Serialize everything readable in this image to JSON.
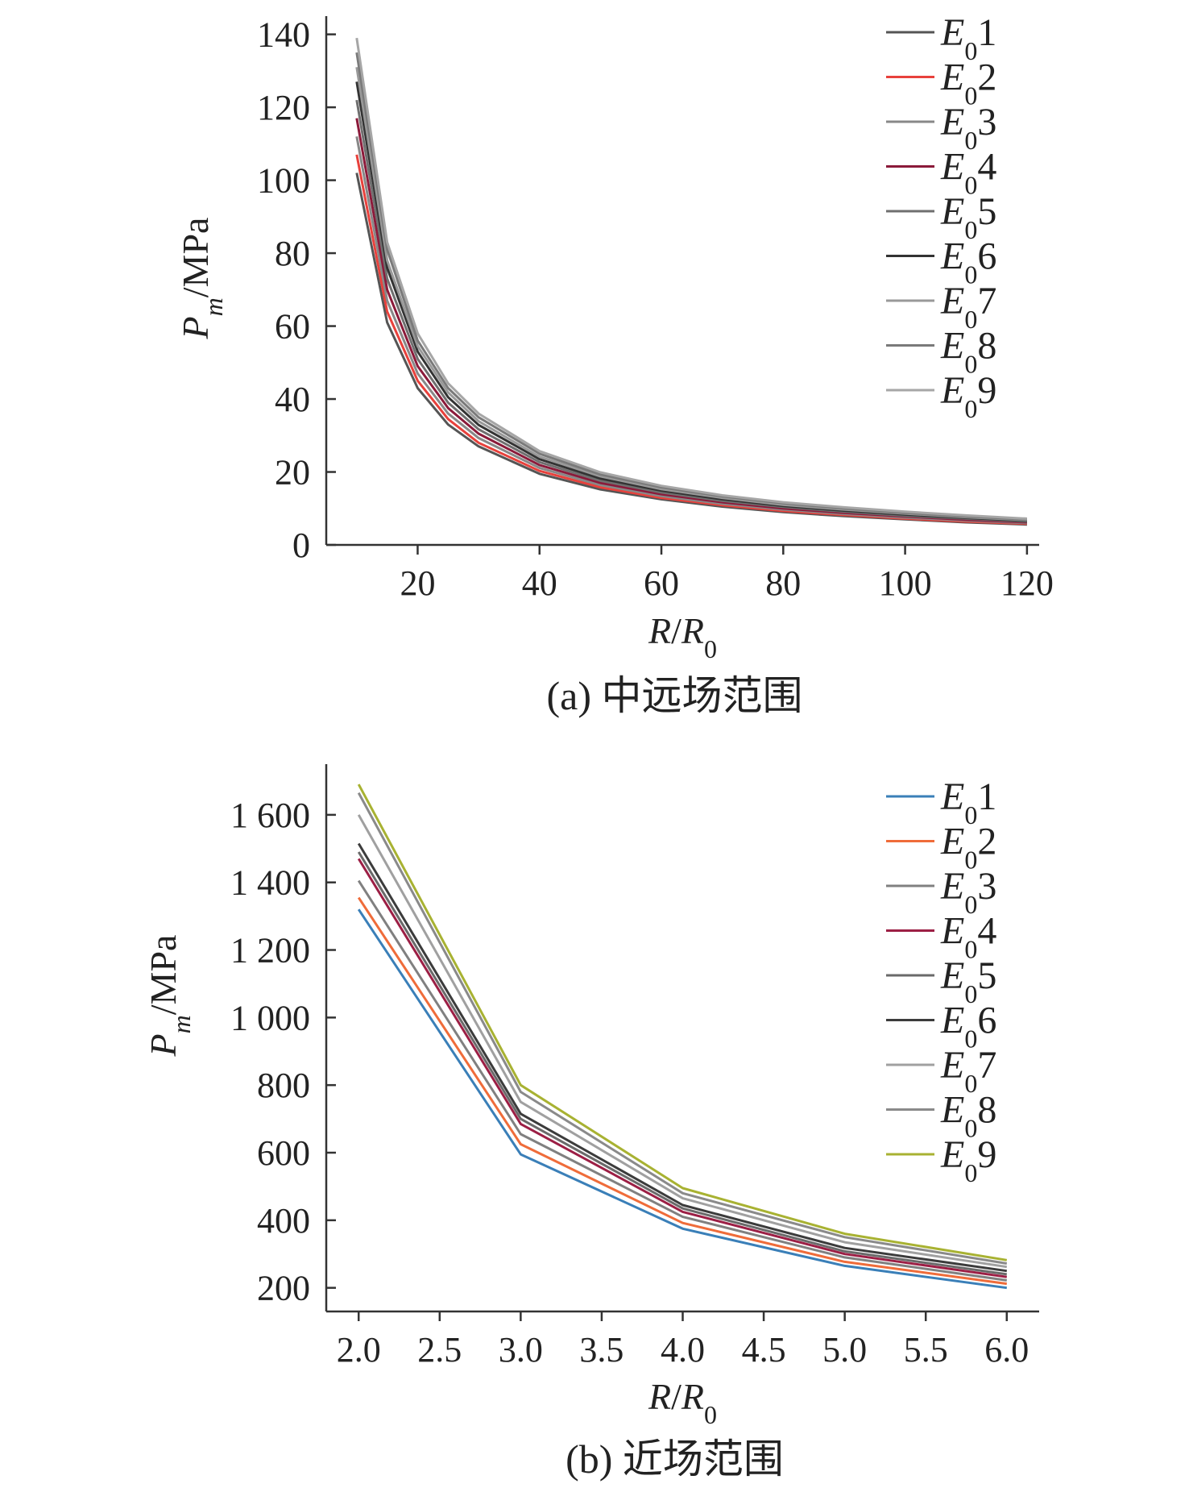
{
  "chart_data": [
    {
      "type": "line",
      "caption": "(a) 中远场范围",
      "ylabel": {
        "main": "P",
        "sub": "m",
        "unit": "/MPa"
      },
      "xlabel": {
        "main": "R",
        "sep": "/",
        "main2": "R",
        "sub": "0"
      },
      "xlim": [
        5,
        122
      ],
      "ylim": [
        0,
        145
      ],
      "xticks": [
        20,
        40,
        60,
        80,
        100,
        120
      ],
      "yticks": [
        0,
        20,
        40,
        60,
        80,
        100,
        120,
        140
      ],
      "xtick_labels": [
        "20",
        "40",
        "60",
        "80",
        "100",
        "120"
      ],
      "ytick_labels": [
        "0",
        "20",
        "40",
        "60",
        "80",
        "100",
        "120",
        "140"
      ],
      "legend_position": "top-right",
      "x": [
        10,
        15,
        20,
        25,
        30,
        40,
        50,
        60,
        70,
        80,
        90,
        100,
        110,
        120
      ],
      "series": [
        {
          "name": "E01",
          "label_main": "E",
          "label_sub": "0",
          "label_num": "1",
          "color": "#555555",
          "values": [
            102,
            61,
            43,
            33,
            27,
            19.5,
            15.2,
            12.5,
            10.5,
            9.0,
            7.9,
            7.0,
            6.2,
            5.6
          ]
        },
        {
          "name": "E02",
          "label_main": "E",
          "label_sub": "0",
          "label_num": "2",
          "color": "#e8413c",
          "values": [
            107,
            64,
            45,
            34.5,
            28,
            20.3,
            15.8,
            12.9,
            10.9,
            9.3,
            8.2,
            7.2,
            6.4,
            5.8
          ]
        },
        {
          "name": "E03",
          "label_main": "E",
          "label_sub": "0",
          "label_num": "3",
          "color": "#888888",
          "values": [
            112,
            67,
            47,
            36,
            29.3,
            21.1,
            16.4,
            13.4,
            11.3,
            9.7,
            8.5,
            7.5,
            6.7,
            6.0
          ]
        },
        {
          "name": "E04",
          "label_main": "E",
          "label_sub": "0",
          "label_num": "4",
          "color": "#8b1a3a",
          "values": [
            117,
            70,
            49,
            37.5,
            30.5,
            21.9,
            17.0,
            13.9,
            11.7,
            10.0,
            8.8,
            7.8,
            6.9,
            6.2
          ]
        },
        {
          "name": "E05",
          "label_main": "E",
          "label_sub": "0",
          "label_num": "5",
          "color": "#6f6f6f",
          "values": [
            122,
            73,
            51,
            39,
            31.7,
            22.7,
            17.6,
            14.4,
            12.1,
            10.4,
            9.1,
            8.0,
            7.2,
            6.4
          ]
        },
        {
          "name": "E06",
          "label_main": "E",
          "label_sub": "0",
          "label_num": "6",
          "color": "#333333",
          "values": [
            127,
            76,
            53,
            40.5,
            32.9,
            23.5,
            18.2,
            14.9,
            12.5,
            10.7,
            9.4,
            8.3,
            7.4,
            6.6
          ]
        },
        {
          "name": "E07",
          "label_main": "E",
          "label_sub": "0",
          "label_num": "7",
          "color": "#999999",
          "values": [
            131,
            78,
            54.5,
            41.8,
            33.9,
            24.2,
            18.8,
            15.3,
            12.9,
            11.0,
            9.7,
            8.6,
            7.6,
            6.8
          ]
        },
        {
          "name": "E08",
          "label_main": "E",
          "label_sub": "0",
          "label_num": "8",
          "color": "#7a7a7a",
          "values": [
            135,
            81,
            56,
            43,
            35,
            25,
            19.3,
            15.8,
            13.3,
            11.4,
            10.0,
            8.8,
            7.8,
            7.0
          ]
        },
        {
          "name": "E09",
          "label_main": "E",
          "label_sub": "0",
          "label_num": "9",
          "color": "#a6a6a6",
          "values": [
            139,
            83,
            58,
            44.3,
            36,
            25.7,
            19.9,
            16.2,
            13.6,
            11.7,
            10.3,
            9.1,
            8.1,
            7.2
          ]
        }
      ]
    },
    {
      "type": "line",
      "caption": "(b) 近场范围",
      "ylabel": {
        "main": "P",
        "sub": "m",
        "unit": "/MPa"
      },
      "xlabel": {
        "main": "R",
        "sep": "/",
        "main2": "R",
        "sub": "0"
      },
      "xlim": [
        1.8,
        6.2
      ],
      "ylim": [
        130,
        1750
      ],
      "xticks": [
        2.0,
        2.5,
        3.0,
        3.5,
        4.0,
        4.5,
        5.0,
        5.5,
        6.0
      ],
      "yticks": [
        200,
        400,
        600,
        800,
        1000,
        1200,
        1400,
        1600
      ],
      "xtick_labels": [
        "2.0",
        "2.5",
        "3.0",
        "3.5",
        "4.0",
        "4.5",
        "5.0",
        "5.5",
        "6.0"
      ],
      "ytick_labels": [
        "200",
        "400",
        "600",
        "800",
        "1 000",
        "1 200",
        "1 400",
        "1 600"
      ],
      "legend_position": "top-right",
      "x": [
        2.0,
        3.0,
        4.0,
        5.0,
        6.0
      ],
      "series": [
        {
          "name": "E01",
          "label_main": "E",
          "label_sub": "0",
          "label_num": "1",
          "color": "#3a7fb8",
          "values": [
            1320,
            595,
            375,
            265,
            200
          ]
        },
        {
          "name": "E02",
          "label_main": "E",
          "label_sub": "0",
          "label_num": "2",
          "color": "#ef6c3a",
          "values": [
            1355,
            625,
            392,
            277,
            212
          ]
        },
        {
          "name": "E03",
          "label_main": "E",
          "label_sub": "0",
          "label_num": "3",
          "color": "#808080",
          "values": [
            1405,
            655,
            410,
            290,
            222
          ]
        },
        {
          "name": "E04",
          "label_main": "E",
          "label_sub": "0",
          "label_num": "4",
          "color": "#9c1f45",
          "values": [
            1470,
            685,
            425,
            300,
            232
          ]
        },
        {
          "name": "E05",
          "label_main": "E",
          "label_sub": "0",
          "label_num": "5",
          "color": "#6a6a6a",
          "values": [
            1490,
            700,
            435,
            308,
            240
          ]
        },
        {
          "name": "E06",
          "label_main": "E",
          "label_sub": "0",
          "label_num": "6",
          "color": "#3c3c3c",
          "values": [
            1515,
            715,
            445,
            318,
            250
          ]
        },
        {
          "name": "E07",
          "label_main": "E",
          "label_sub": "0",
          "label_num": "7",
          "color": "#a0a0a0",
          "values": [
            1600,
            750,
            465,
            335,
            262
          ]
        },
        {
          "name": "E08",
          "label_main": "E",
          "label_sub": "0",
          "label_num": "8",
          "color": "#8a8a8a",
          "values": [
            1665,
            780,
            480,
            350,
            272
          ]
        },
        {
          "name": "E09",
          "label_main": "E",
          "label_sub": "0",
          "label_num": "9",
          "color": "#a8b232",
          "values": [
            1690,
            800,
            495,
            360,
            282
          ]
        }
      ]
    }
  ]
}
